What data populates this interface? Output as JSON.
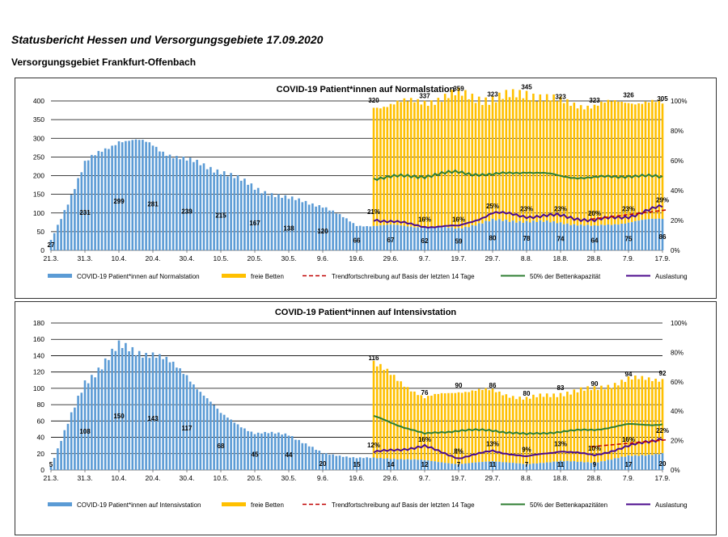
{
  "header": {
    "title": "Statusbericht Hessen und Versorgungsgebiete 17.09.2020",
    "subtitle": "Versorgungsgebiet Frankfurt-Offenbach"
  },
  "colors": {
    "patients": "#5b9bd5",
    "free_beds": "#ffc000",
    "trend": "#c00000",
    "capacity50": "#2e7d32",
    "utilization": "#4b0a8c"
  },
  "chart_data": [
    {
      "type": "bar",
      "title": "COVID-19 Patient*innen auf Normalstation",
      "xlabel": "",
      "ylabel": "",
      "ylim": [
        0,
        400
      ],
      "y_ticks": [
        "0",
        "50",
        "100",
        "150",
        "200",
        "250",
        "300",
        "350",
        "400"
      ],
      "y2lim": [
        0,
        100
      ],
      "y2_ticks": [
        "0%",
        "20%",
        "40%",
        "60%",
        "80%",
        "100%"
      ],
      "x_ticks": [
        "21.3.",
        "31.3.",
        "10.4.",
        "20.4.",
        "30.4.",
        "10.5.",
        "20.5.",
        "30.5.",
        "9.6.",
        "19.6.",
        "29.6.",
        "9.7.",
        "19.7.",
        "29.7.",
        "8.8.",
        "18.8.",
        "28.8.",
        "7.9.",
        "17.9."
      ],
      "legend": [
        "COVID-19 Patient*innen auf Normalstation",
        "freie Betten",
        "Trendfortschreibung auf Basis der letzten 14 Tage",
        "50% der Bettenkapazität",
        "Auslastung"
      ],
      "legend_position": "bottom",
      "series": [
        {
          "name": "COVID-19 Patient*innen auf Normalstation",
          "x": [
            "21.3.",
            "31.3.",
            "10.4.",
            "20.4.",
            "30.4.",
            "10.5.",
            "20.5.",
            "30.5.",
            "9.6.",
            "19.6.",
            "29.6.",
            "9.7.",
            "19.7.",
            "29.7.",
            "8.8.",
            "18.8.",
            "28.8.",
            "7.9.",
            "17.9."
          ],
          "values": [
            27,
            231,
            299,
            281,
            239,
            215,
            167,
            138,
            120,
            66,
            67,
            62,
            59,
            80,
            78,
            74,
            64,
            75,
            86
          ]
        },
        {
          "name": "freie Betten",
          "x": [
            "24.6.",
            "9.7.",
            "19.7.",
            "29.7.",
            "8.8.",
            "18.8.",
            "28.8.",
            "7.9.",
            "17.9."
          ],
          "values": [
            320,
            337,
            359,
            323,
            345,
            323,
            323,
            326,
            305
          ]
        },
        {
          "name": "Auslastung",
          "x": [
            "24.6.",
            "9.7.",
            "19.7.",
            "29.7.",
            "8.8.",
            "18.8.",
            "28.8.",
            "7.9.",
            "17.9."
          ],
          "values": [
            21,
            16,
            16,
            25,
            23,
            23,
            20,
            23,
            29
          ]
        }
      ],
      "data_labels": {
        "patients": [
          "27",
          "231",
          "299",
          "281",
          "239",
          "215",
          "167",
          "138",
          "120",
          "66",
          "67",
          "62",
          "59",
          "80",
          "78",
          "74",
          "64",
          "75",
          "86"
        ],
        "free_beds": [
          "320",
          "337",
          "359",
          "323",
          "345",
          "323",
          "323",
          "326",
          "305"
        ],
        "utilization": [
          "21%",
          "16%",
          "16%",
          "25%",
          "23%",
          "23%",
          "20%",
          "23%",
          "29%"
        ]
      }
    },
    {
      "type": "bar",
      "title": "COVID-19 Patient*innen auf Intensivstation",
      "xlabel": "",
      "ylabel": "",
      "ylim": [
        0,
        180
      ],
      "y_ticks": [
        "0",
        "20",
        "40",
        "60",
        "80",
        "100",
        "120",
        "140",
        "160",
        "180"
      ],
      "y2lim": [
        0,
        100
      ],
      "y2_ticks": [
        "0%",
        "20%",
        "40%",
        "60%",
        "80%",
        "100%"
      ],
      "x_ticks": [
        "21.3.",
        "31.3.",
        "10.4.",
        "20.4.",
        "30.4.",
        "10.5.",
        "20.5.",
        "30.5.",
        "9.6.",
        "19.6.",
        "29.6.",
        "9.7.",
        "19.7.",
        "29.7.",
        "8.8.",
        "18.8.",
        "28.8.",
        "7.9.",
        "17.9."
      ],
      "legend": [
        "COVID-19 Patient*innen auf Intensivstation",
        "freie Betten",
        "Trendfortschreibung auf Basis der letzten 14 Tage",
        "50% der Bettenkapazitäten",
        "Auslastung"
      ],
      "legend_position": "bottom",
      "series": [
        {
          "name": "COVID-19 Patient*innen auf Intensivstation",
          "x": [
            "21.3.",
            "31.3.",
            "10.4.",
            "20.4.",
            "30.4.",
            "10.5.",
            "20.5.",
            "30.5.",
            "9.6.",
            "19.6.",
            "29.6.",
            "9.7.",
            "19.7.",
            "29.7.",
            "8.8.",
            "18.8.",
            "28.8.",
            "7.9.",
            "17.9."
          ],
          "values": [
            5,
            108,
            150,
            143,
            117,
            68,
            45,
            44,
            20,
            15,
            14,
            12,
            7,
            11,
            7,
            11,
            9,
            17,
            20
          ]
        },
        {
          "name": "freie Betten",
          "x": [
            "24.6.",
            "9.7.",
            "19.7.",
            "29.7.",
            "8.8.",
            "18.8.",
            "28.8.",
            "7.9.",
            "17.9."
          ],
          "values": [
            116,
            76,
            90,
            86,
            80,
            83,
            90,
            94,
            92
          ]
        },
        {
          "name": "Auslastung",
          "x": [
            "24.6.",
            "9.7.",
            "19.7.",
            "29.7.",
            "8.8.",
            "18.8.",
            "28.8.",
            "7.9.",
            "17.9."
          ],
          "values": [
            12,
            16,
            8,
            13,
            9,
            13,
            10,
            16,
            22
          ]
        }
      ],
      "data_labels": {
        "patients": [
          "5",
          "108",
          "150",
          "143",
          "117",
          "68",
          "45",
          "44",
          "20",
          "15",
          "14",
          "12",
          "7",
          "11",
          "7",
          "11",
          "9",
          "17",
          "20"
        ],
        "free_beds": [
          "116",
          "76",
          "90",
          "86",
          "80",
          "83",
          "90",
          "94",
          "92"
        ],
        "utilization": [
          "12%",
          "16%",
          "8%",
          "13%",
          "9%",
          "13%",
          "10%",
          "16%",
          "22%"
        ]
      }
    }
  ]
}
